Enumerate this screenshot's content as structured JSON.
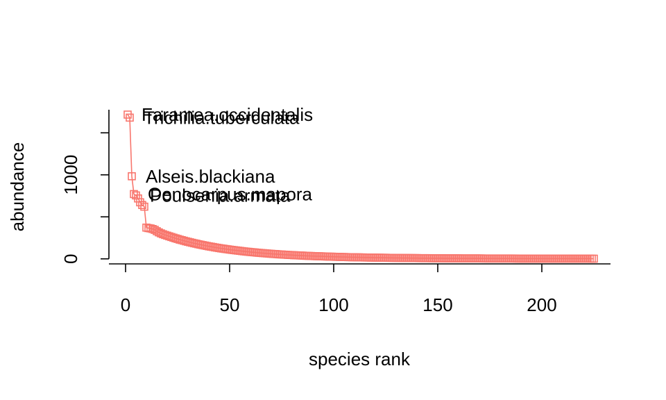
{
  "chart_data": {
    "type": "scatter",
    "title": "",
    "xlabel": "species rank",
    "ylabel": "abundance",
    "xlim": [
      -8,
      233
    ],
    "ylim": [
      -60,
      1775
    ],
    "xticks": [
      0,
      50,
      100,
      150,
      200
    ],
    "yticks": [
      0,
      500,
      1000,
      1500
    ],
    "ytick_labels": [
      "0",
      "",
      "1000",
      ""
    ],
    "grid": false,
    "series_color": "#F8766D",
    "marker": "open-square",
    "connected": true,
    "n_species": 225,
    "head_values": [
      1717,
      1681,
      983,
      771,
      755,
      719,
      673,
      641,
      621,
      372,
      366,
      362,
      355,
      345,
      329,
      315,
      303,
      293,
      284,
      276
    ],
    "tail_params": {
      "start_value": 276,
      "end_value": 2,
      "decay": 0.031
    },
    "annotations": [
      {
        "label": "Faramea.occidentalis",
        "rank": 1,
        "value": 1717
      },
      {
        "label": "Trichilia.tuberculata",
        "rank": 2,
        "value": 1681
      },
      {
        "label": "Alseis.blackiana",
        "rank": 3,
        "value": 983
      },
      {
        "label": "Oenocarpus.mapora",
        "rank": 4,
        "value": 771
      },
      {
        "label": "Poulsenia.armata",
        "rank": 5,
        "value": 755
      }
    ]
  }
}
